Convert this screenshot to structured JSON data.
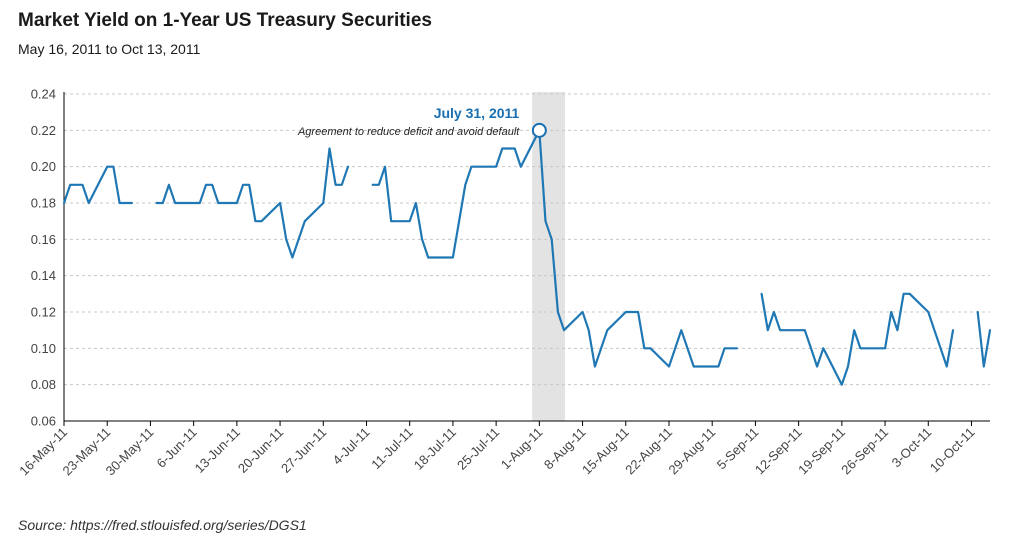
{
  "header": {
    "title": "Market Yield on 1-Year US Treasury Securities",
    "subtitle": "May 16, 2011 to Oct 13, 2011"
  },
  "footer": {
    "source": "Source: https://fred.stlouisfed.org/series/DGS1"
  },
  "colors": {
    "line": "#1f77b4",
    "annotation": "#1a6fb0",
    "highlight_band": "#e3e3e3",
    "grid": "#c8c8c8"
  },
  "chart_data": {
    "type": "line",
    "title": "Market Yield on 1-Year US Treasury Securities",
    "subtitle": "May 16, 2011 to Oct 13, 2011",
    "xlabel": "",
    "ylabel": "",
    "ylim": [
      0.06,
      0.24
    ],
    "yticks": [
      0.06,
      0.08,
      0.1,
      0.12,
      0.14,
      0.16,
      0.18,
      0.2,
      0.22,
      0.24
    ],
    "ytick_labels": [
      "0.06",
      "0.08",
      "0.10",
      "0.12",
      "0.14",
      "0.16",
      "0.18",
      "0.20",
      "0.22",
      "0.24"
    ],
    "xlim": [
      "2011-05-16",
      "2011-10-13"
    ],
    "xticks": [
      "2011-05-16",
      "2011-05-23",
      "2011-05-30",
      "2011-06-06",
      "2011-06-13",
      "2011-06-20",
      "2011-06-27",
      "2011-07-04",
      "2011-07-11",
      "2011-07-18",
      "2011-07-25",
      "2011-08-01",
      "2011-08-08",
      "2011-08-15",
      "2011-08-22",
      "2011-08-29",
      "2011-09-05",
      "2011-09-12",
      "2011-09-19",
      "2011-09-26",
      "2011-10-03",
      "2011-10-10"
    ],
    "xtick_labels": [
      "16-May-11",
      "23-May-11",
      "30-May-11",
      "6-Jun-11",
      "13-Jun-11",
      "20-Jun-11",
      "27-Jun-11",
      "4-Jul-11",
      "11-Jul-11",
      "18-Jul-11",
      "25-Jul-11",
      "1-Aug-11",
      "8-Aug-11",
      "15-Aug-11",
      "22-Aug-11",
      "29-Aug-11",
      "5-Sep-11",
      "12-Sep-11",
      "19-Sep-11",
      "26-Sep-11",
      "3-Oct-11",
      "10-Oct-11"
    ],
    "grid": true,
    "highlight_range": [
      "2011-07-31",
      "2011-08-05"
    ],
    "annotation": {
      "date": "2011-07-31",
      "value": 0.22,
      "title": "July 31, 2011",
      "text": "Agreement to reduce deficit and avoid default"
    },
    "series": [
      {
        "name": "",
        "points": [
          {
            "x": "2011-05-16",
            "y": 0.18
          },
          {
            "x": "2011-05-17",
            "y": 0.19
          },
          {
            "x": "2011-05-18",
            "y": 0.19
          },
          {
            "x": "2011-05-19",
            "y": 0.19
          },
          {
            "x": "2011-05-20",
            "y": 0.18
          },
          {
            "x": "2011-05-23",
            "y": 0.2
          },
          {
            "x": "2011-05-24",
            "y": 0.2
          },
          {
            "x": "2011-05-25",
            "y": 0.18
          },
          {
            "x": "2011-05-26",
            "y": 0.18
          },
          {
            "x": "2011-05-27",
            "y": 0.18
          },
          {
            "x": "2011-05-30",
            "y": null
          },
          {
            "x": "2011-05-31",
            "y": 0.18
          },
          {
            "x": "2011-06-01",
            "y": 0.18
          },
          {
            "x": "2011-06-02",
            "y": 0.19
          },
          {
            "x": "2011-06-03",
            "y": 0.18
          },
          {
            "x": "2011-06-06",
            "y": 0.18
          },
          {
            "x": "2011-06-07",
            "y": 0.18
          },
          {
            "x": "2011-06-08",
            "y": 0.19
          },
          {
            "x": "2011-06-09",
            "y": 0.19
          },
          {
            "x": "2011-06-10",
            "y": 0.18
          },
          {
            "x": "2011-06-13",
            "y": 0.18
          },
          {
            "x": "2011-06-14",
            "y": 0.19
          },
          {
            "x": "2011-06-15",
            "y": 0.19
          },
          {
            "x": "2011-06-16",
            "y": 0.17
          },
          {
            "x": "2011-06-17",
            "y": 0.17
          },
          {
            "x": "2011-06-20",
            "y": 0.18
          },
          {
            "x": "2011-06-21",
            "y": 0.16
          },
          {
            "x": "2011-06-22",
            "y": 0.15
          },
          {
            "x": "2011-06-23",
            "y": 0.16
          },
          {
            "x": "2011-06-24",
            "y": 0.17
          },
          {
            "x": "2011-06-27",
            "y": 0.18
          },
          {
            "x": "2011-06-28",
            "y": 0.21
          },
          {
            "x": "2011-06-29",
            "y": 0.19
          },
          {
            "x": "2011-06-30",
            "y": 0.19
          },
          {
            "x": "2011-07-01",
            "y": 0.2
          },
          {
            "x": "2011-07-04",
            "y": null
          },
          {
            "x": "2011-07-05",
            "y": 0.19
          },
          {
            "x": "2011-07-06",
            "y": 0.19
          },
          {
            "x": "2011-07-07",
            "y": 0.2
          },
          {
            "x": "2011-07-08",
            "y": 0.17
          },
          {
            "x": "2011-07-11",
            "y": 0.17
          },
          {
            "x": "2011-07-12",
            "y": 0.18
          },
          {
            "x": "2011-07-13",
            "y": 0.16
          },
          {
            "x": "2011-07-14",
            "y": 0.15
          },
          {
            "x": "2011-07-15",
            "y": 0.15
          },
          {
            "x": "2011-07-18",
            "y": 0.15
          },
          {
            "x": "2011-07-19",
            "y": 0.17
          },
          {
            "x": "2011-07-20",
            "y": 0.19
          },
          {
            "x": "2011-07-21",
            "y": 0.2
          },
          {
            "x": "2011-07-22",
            "y": 0.2
          },
          {
            "x": "2011-07-25",
            "y": 0.2
          },
          {
            "x": "2011-07-26",
            "y": 0.21
          },
          {
            "x": "2011-07-27",
            "y": 0.21
          },
          {
            "x": "2011-07-28",
            "y": 0.21
          },
          {
            "x": "2011-07-29",
            "y": 0.2
          },
          {
            "x": "2011-08-01",
            "y": 0.22
          },
          {
            "x": "2011-08-02",
            "y": 0.17
          },
          {
            "x": "2011-08-03",
            "y": 0.16
          },
          {
            "x": "2011-08-04",
            "y": 0.12
          },
          {
            "x": "2011-08-05",
            "y": 0.11
          },
          {
            "x": "2011-08-08",
            "y": 0.12
          },
          {
            "x": "2011-08-09",
            "y": 0.11
          },
          {
            "x": "2011-08-10",
            "y": 0.09
          },
          {
            "x": "2011-08-11",
            "y": 0.1
          },
          {
            "x": "2011-08-12",
            "y": 0.11
          },
          {
            "x": "2011-08-15",
            "y": 0.12
          },
          {
            "x": "2011-08-16",
            "y": 0.12
          },
          {
            "x": "2011-08-17",
            "y": 0.12
          },
          {
            "x": "2011-08-18",
            "y": 0.1
          },
          {
            "x": "2011-08-19",
            "y": 0.1
          },
          {
            "x": "2011-08-22",
            "y": 0.09
          },
          {
            "x": "2011-08-23",
            "y": 0.1
          },
          {
            "x": "2011-08-24",
            "y": 0.11
          },
          {
            "x": "2011-08-25",
            "y": 0.1
          },
          {
            "x": "2011-08-26",
            "y": 0.09
          },
          {
            "x": "2011-08-29",
            "y": 0.09
          },
          {
            "x": "2011-08-30",
            "y": 0.09
          },
          {
            "x": "2011-08-31",
            "y": 0.1
          },
          {
            "x": "2011-09-01",
            "y": 0.1
          },
          {
            "x": "2011-09-02",
            "y": 0.1
          },
          {
            "x": "2011-09-05",
            "y": null
          },
          {
            "x": "2011-09-06",
            "y": 0.13
          },
          {
            "x": "2011-09-07",
            "y": 0.11
          },
          {
            "x": "2011-09-08",
            "y": 0.12
          },
          {
            "x": "2011-09-09",
            "y": 0.11
          },
          {
            "x": "2011-09-12",
            "y": 0.11
          },
          {
            "x": "2011-09-13",
            "y": 0.11
          },
          {
            "x": "2011-09-14",
            "y": 0.1
          },
          {
            "x": "2011-09-15",
            "y": 0.09
          },
          {
            "x": "2011-09-16",
            "y": 0.1
          },
          {
            "x": "2011-09-19",
            "y": 0.08
          },
          {
            "x": "2011-09-20",
            "y": 0.09
          },
          {
            "x": "2011-09-21",
            "y": 0.11
          },
          {
            "x": "2011-09-22",
            "y": 0.1
          },
          {
            "x": "2011-09-23",
            "y": 0.1
          },
          {
            "x": "2011-09-26",
            "y": 0.1
          },
          {
            "x": "2011-09-27",
            "y": 0.12
          },
          {
            "x": "2011-09-28",
            "y": 0.11
          },
          {
            "x": "2011-09-29",
            "y": 0.13
          },
          {
            "x": "2011-09-30",
            "y": 0.13
          },
          {
            "x": "2011-10-03",
            "y": 0.12
          },
          {
            "x": "2011-10-04",
            "y": 0.11
          },
          {
            "x": "2011-10-05",
            "y": 0.1
          },
          {
            "x": "2011-10-06",
            "y": 0.09
          },
          {
            "x": "2011-10-07",
            "y": 0.11
          },
          {
            "x": "2011-10-10",
            "y": null
          },
          {
            "x": "2011-10-11",
            "y": 0.12
          },
          {
            "x": "2011-10-12",
            "y": 0.09
          },
          {
            "x": "2011-10-13",
            "y": 0.11
          }
        ]
      }
    ]
  }
}
